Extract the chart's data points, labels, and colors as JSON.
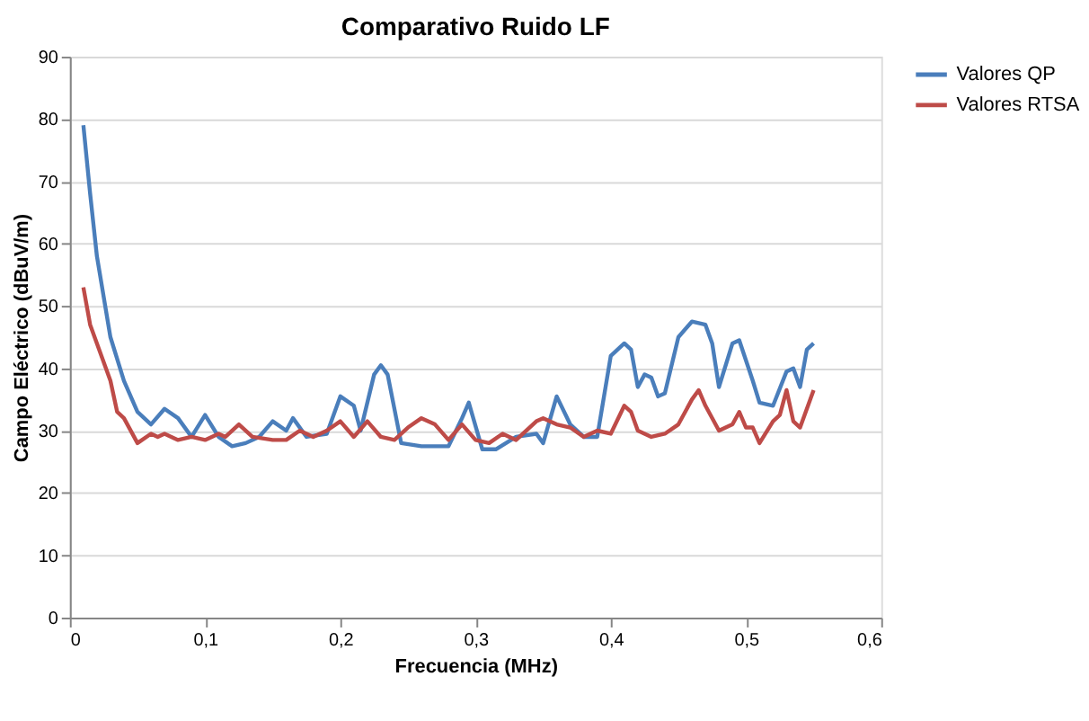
{
  "chart_data": {
    "type": "line",
    "title": "Comparativo Ruido LF",
    "xlabel": "Frecuencia (MHz)",
    "ylabel": "Campo Eléctrico (dBuV/m)",
    "xlim": [
      0,
      0.6
    ],
    "xticks": [
      0,
      {
        "value": 0.1,
        "label": "0,1"
      },
      {
        "value": 0.2,
        "label": "0,2"
      },
      {
        "value": 0.3,
        "label": "0,3"
      },
      {
        "value": 0.4,
        "label": "0,4"
      },
      {
        "value": 0.5,
        "label": "0,5"
      },
      {
        "value": 0.6,
        "label": "0,6"
      }
    ],
    "ylim": [
      0,
      90
    ],
    "yticks": [
      0,
      10,
      20,
      30,
      40,
      50,
      60,
      70,
      80,
      90
    ],
    "grid": "y",
    "legend": "right",
    "line_style": "solid",
    "series": [
      {
        "name": "Valores QP",
        "color": "#4a7ebb",
        "x": [
          0.01,
          0.015,
          0.02,
          0.03,
          0.04,
          0.05,
          0.06,
          0.07,
          0.08,
          0.09,
          0.1,
          0.11,
          0.12,
          0.13,
          0.14,
          0.15,
          0.16,
          0.165,
          0.175,
          0.19,
          0.2,
          0.21,
          0.215,
          0.225,
          0.23,
          0.235,
          0.245,
          0.26,
          0.28,
          0.29,
          0.295,
          0.305,
          0.315,
          0.33,
          0.345,
          0.35,
          0.36,
          0.37,
          0.38,
          0.39,
          0.4,
          0.41,
          0.415,
          0.42,
          0.425,
          0.43,
          0.435,
          0.44,
          0.45,
          0.46,
          0.47,
          0.475,
          0.48,
          0.49,
          0.495,
          0.505,
          0.51,
          0.52,
          0.53,
          0.535,
          0.54,
          0.545,
          0.55
        ],
        "values": [
          79,
          68,
          58,
          45,
          38,
          33,
          31,
          33.5,
          32,
          29,
          32.5,
          29,
          27.5,
          28,
          29,
          31.5,
          30,
          32,
          29,
          29.5,
          35.5,
          34,
          30,
          39,
          40.5,
          39,
          28,
          27.5,
          27.5,
          32,
          34.5,
          27,
          27,
          29,
          29.5,
          28,
          35.5,
          31,
          29,
          29,
          42,
          44,
          43,
          37,
          39,
          38.5,
          35.5,
          36,
          45,
          47.5,
          47,
          44,
          37,
          44,
          44.5,
          38,
          34.5,
          34,
          39.5,
          40,
          37,
          43,
          44
        ]
      },
      {
        "name": "Valores RTSA",
        "color": "#be4b48",
        "x": [
          0.01,
          0.015,
          0.02,
          0.03,
          0.035,
          0.04,
          0.05,
          0.06,
          0.065,
          0.07,
          0.08,
          0.09,
          0.1,
          0.11,
          0.115,
          0.125,
          0.135,
          0.15,
          0.16,
          0.17,
          0.18,
          0.19,
          0.2,
          0.21,
          0.22,
          0.23,
          0.24,
          0.25,
          0.26,
          0.27,
          0.28,
          0.29,
          0.3,
          0.31,
          0.32,
          0.33,
          0.345,
          0.35,
          0.36,
          0.37,
          0.38,
          0.39,
          0.4,
          0.41,
          0.415,
          0.42,
          0.43,
          0.44,
          0.45,
          0.46,
          0.465,
          0.47,
          0.48,
          0.49,
          0.495,
          0.5,
          0.505,
          0.51,
          0.52,
          0.525,
          0.53,
          0.535,
          0.54,
          0.55
        ],
        "values": [
          53,
          47,
          44,
          38,
          33,
          32,
          28,
          29.5,
          29,
          29.5,
          28.5,
          29,
          28.5,
          29.5,
          29,
          31,
          29,
          28.5,
          28.5,
          30,
          29,
          30,
          31.5,
          29,
          31.5,
          29,
          28.5,
          30.5,
          32,
          31,
          28.5,
          31,
          28.5,
          28,
          29.5,
          28.5,
          31.5,
          32,
          31,
          30.5,
          29,
          30,
          29.5,
          34,
          33,
          30,
          29,
          29.5,
          31,
          35,
          36.5,
          34,
          30,
          31,
          33,
          30.5,
          30.5,
          28,
          31.5,
          32.5,
          36.5,
          31.5,
          30.5,
          36.5
        ]
      }
    ]
  }
}
